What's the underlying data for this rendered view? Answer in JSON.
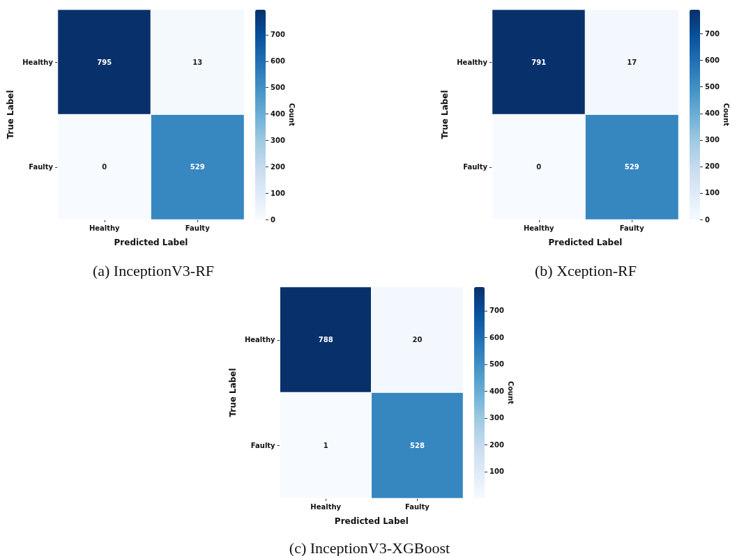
{
  "chart_data": [
    {
      "type": "heatmap",
      "title": "(a) InceptionV3-RF",
      "xlabel": "Predicted Label",
      "ylabel": "True Label",
      "clabel": "Count",
      "categories": [
        "Healthy",
        "Faulty"
      ],
      "y_categories": [
        "Healthy",
        "Faulty"
      ],
      "cells": [
        [
          795,
          13
        ],
        [
          0,
          529
        ]
      ],
      "clim": [
        0,
        795
      ],
      "cticks": [
        0,
        100,
        200,
        300,
        400,
        500,
        600,
        700
      ],
      "data_labels": true
    },
    {
      "type": "heatmap",
      "title": "(b) Xception-RF",
      "xlabel": "Predicted Label",
      "ylabel": "True Label",
      "clabel": "Count",
      "categories": [
        "Healthy",
        "Faulty"
      ],
      "y_categories": [
        "Healthy",
        "Faulty"
      ],
      "cells": [
        [
          791,
          17
        ],
        [
          0,
          529
        ]
      ],
      "clim": [
        0,
        791
      ],
      "cticks": [
        0,
        100,
        200,
        300,
        400,
        500,
        600,
        700
      ],
      "data_labels": true
    },
    {
      "type": "heatmap",
      "title": "(c) InceptionV3-XGBoost",
      "xlabel": "Predicted Label",
      "ylabel": "True Label",
      "clabel": "Count",
      "categories": [
        "Healthy",
        "Faulty"
      ],
      "y_categories": [
        "Healthy",
        "Faulty"
      ],
      "cells": [
        [
          788,
          20
        ],
        [
          1,
          528
        ]
      ],
      "clim": [
        1,
        788
      ],
      "cticks": [
        100,
        200,
        300,
        400,
        500,
        600,
        700
      ],
      "data_labels": true
    }
  ]
}
